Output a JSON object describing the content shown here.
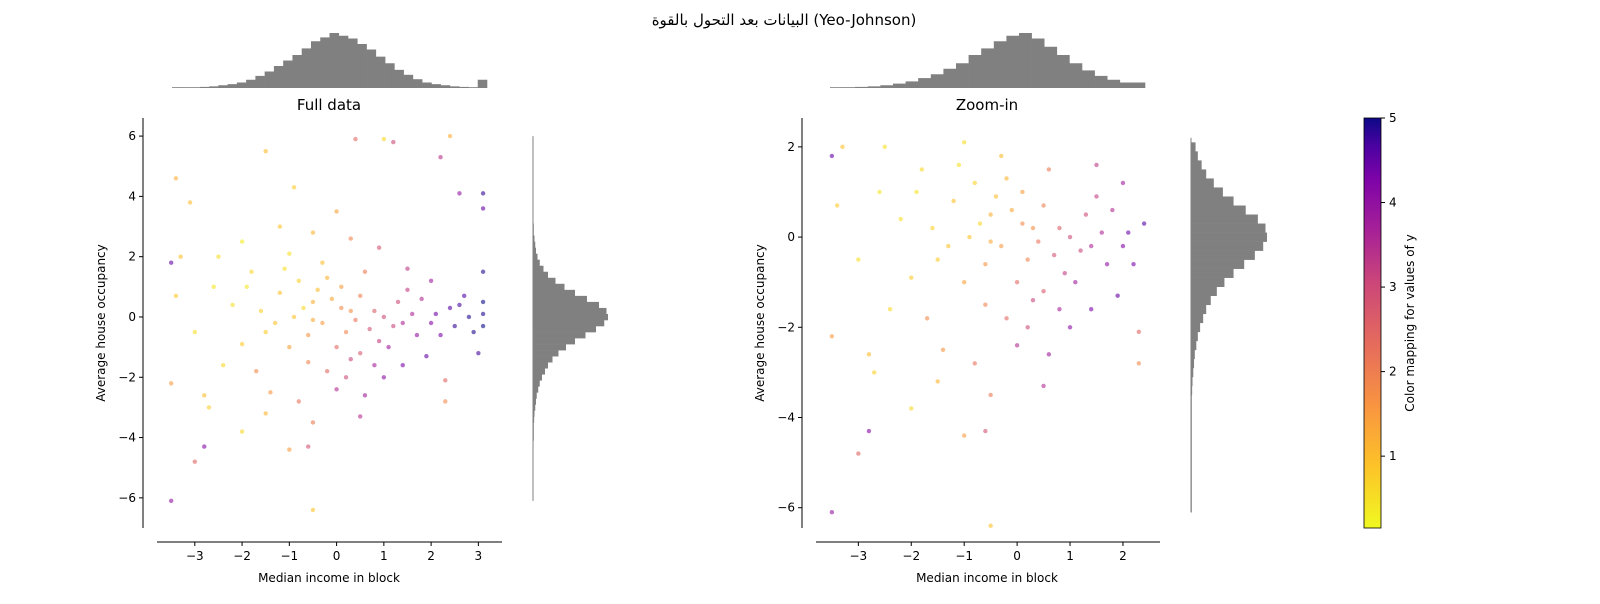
{
  "figure": {
    "suptitle": "البيانات بعد التحول بالقوة (Yeo-Johnson)"
  },
  "colorbar": {
    "label": "Color mapping for values of y",
    "colormap": "plasma_r",
    "range": [
      0.15,
      5
    ],
    "ticks": [
      "1",
      "2",
      "3",
      "4",
      "5"
    ],
    "tick_values": [
      1,
      2,
      3,
      4,
      5
    ]
  },
  "chart_data": [
    {
      "type": "scatter",
      "title": "Full data",
      "xlabel": "Median income in block",
      "ylabel": "Average house occupancy",
      "xlim": [
        -3.8,
        3.5
      ],
      "ylim": [
        -7.0,
        6.6
      ],
      "xticks": [
        -3,
        -2,
        -1,
        0,
        1,
        2,
        3
      ],
      "xtick_labels": [
        "−3",
        "−2",
        "−1",
        "0",
        "1",
        "2",
        "3"
      ],
      "yticks": [
        -6,
        -4,
        -2,
        0,
        2,
        4,
        6
      ],
      "ytick_labels": [
        "−6",
        "−4",
        "−2",
        "0",
        "2",
        "4",
        "6"
      ],
      "hist_x": {
        "start": -3.6,
        "width": 0.2,
        "values": [
          0.003,
          0.006,
          0.01,
          0.02,
          0.03,
          0.05,
          0.07,
          0.1,
          0.15,
          0.22,
          0.3,
          0.4,
          0.5,
          0.6,
          0.72,
          0.85,
          0.92,
          1.0,
          0.95,
          0.9,
          0.8,
          0.7,
          0.57,
          0.45,
          0.33,
          0.24,
          0.16,
          0.1,
          0.07,
          0.05,
          0.03,
          0.02,
          0.01,
          0.15
        ]
      },
      "hist_y": {
        "start": -4.1,
        "width": 0.2,
        "values": [
          0.005,
          0.007,
          0.01,
          0.015,
          0.02,
          0.03,
          0.04,
          0.05,
          0.07,
          0.09,
          0.12,
          0.16,
          0.2,
          0.26,
          0.34,
          0.44,
          0.56,
          0.7,
          0.84,
          0.95,
          1.0,
          0.98,
          0.88,
          0.72,
          0.56,
          0.42,
          0.3,
          0.2,
          0.14,
          0.09,
          0.06,
          0.04,
          0.03,
          0.02,
          0.01,
          0.01
        ]
      },
      "hist_color": "#808080"
    },
    {
      "type": "scatter",
      "title": "Zoom-in",
      "xlabel": "Median income in block",
      "ylabel": "Average house occupancy",
      "xlim": [
        -3.8,
        2.7
      ],
      "ylim": [
        -6.45,
        2.64
      ],
      "data_limits": {
        "x_max": 2.45,
        "y_max": 2.25
      },
      "xticks": [
        -3,
        -2,
        -1,
        0,
        1,
        2
      ],
      "xtick_labels": [
        "−3",
        "−2",
        "−1",
        "0",
        "1",
        "2"
      ],
      "yticks": [
        -6,
        -4,
        -2,
        0,
        2
      ],
      "ytick_labels": [
        "−6",
        "−4",
        "−2",
        "0",
        "2"
      ],
      "hist_x": {
        "start": -3.6,
        "width": 0.24,
        "values": [
          0.01,
          0.015,
          0.02,
          0.03,
          0.05,
          0.08,
          0.12,
          0.18,
          0.25,
          0.35,
          0.45,
          0.6,
          0.72,
          0.85,
          0.95,
          1.0,
          0.9,
          0.75,
          0.6,
          0.45,
          0.32,
          0.22,
          0.15,
          0.1,
          0.1
        ]
      },
      "hist_y": {
        "start": -6.1,
        "width": 0.2,
        "values": [
          0.004,
          0.004,
          0.004,
          0.004,
          0.004,
          0.004,
          0.004,
          0.004,
          0.004,
          0.004,
          0.005,
          0.007,
          0.01,
          0.015,
          0.02,
          0.03,
          0.04,
          0.05,
          0.07,
          0.09,
          0.12,
          0.16,
          0.2,
          0.26,
          0.34,
          0.44,
          0.56,
          0.7,
          0.84,
          0.95,
          1.0,
          0.98,
          0.88,
          0.72,
          0.56,
          0.42,
          0.3,
          0.2,
          0.14,
          0.09,
          0.06
        ]
      },
      "hist_color": "#808080"
    }
  ],
  "points": [
    [
      -1.2,
      0.8,
      0.9
    ],
    [
      -0.8,
      1.2,
      0.7
    ],
    [
      -0.5,
      0.5,
      1.2
    ],
    [
      -0.3,
      -0.2,
      1.5
    ],
    [
      0.1,
      0.3,
      1.8
    ],
    [
      0.4,
      -0.1,
      2.2
    ],
    [
      0.8,
      0.2,
      2.6
    ],
    [
      1.2,
      -0.3,
      3.1
    ],
    [
      1.6,
      0.1,
      3.6
    ],
    [
      2.0,
      -0.2,
      4.2
    ],
    [
      2.4,
      0.3,
      4.6
    ],
    [
      2.8,
      0.0,
      4.9
    ],
    [
      3.1,
      0.5,
      5.0
    ],
    [
      3.1,
      -0.3,
      5.0
    ],
    [
      3.1,
      0.1,
      4.9
    ],
    [
      -1.8,
      1.5,
      0.6
    ],
    [
      -2.2,
      0.4,
      0.5
    ],
    [
      -1.5,
      -0.5,
      0.8
    ],
    [
      -1.0,
      -1.0,
      1.4
    ],
    [
      -0.6,
      -1.5,
      1.9
    ],
    [
      -0.2,
      -1.8,
      2.4
    ],
    [
      0.2,
      -2.0,
      3.0
    ],
    [
      0.5,
      -1.2,
      2.7
    ],
    [
      0.9,
      -0.8,
      3.2
    ],
    [
      1.3,
      0.5,
      3.0
    ],
    [
      1.8,
      0.6,
      3.5
    ],
    [
      2.2,
      -0.6,
      4.3
    ],
    [
      2.6,
      0.4,
      4.7
    ],
    [
      -2.6,
      1.0,
      0.4
    ],
    [
      -3.0,
      -0.5,
      0.5
    ],
    [
      -3.4,
      0.7,
      0.8
    ],
    [
      -3.5,
      -2.2,
      1.5
    ],
    [
      -3.4,
      4.6,
      1.2
    ],
    [
      -3.5,
      -6.1,
      4.0
    ],
    [
      -3.0,
      -4.8,
      2.5
    ],
    [
      -2.8,
      -4.3,
      4.2
    ],
    [
      -2.0,
      -3.8,
      0.6
    ],
    [
      -1.4,
      -2.5,
      1.6
    ],
    [
      -0.8,
      -2.8,
      2.2
    ],
    [
      0.0,
      -2.4,
      3.5
    ],
    [
      0.6,
      -2.6,
      3.8
    ],
    [
      1.0,
      -2.0,
      4.1
    ],
    [
      1.4,
      -1.6,
      4.3
    ],
    [
      1.9,
      -1.3,
      4.5
    ],
    [
      2.3,
      -2.1,
      2.5
    ],
    [
      -1.5,
      5.5,
      1.0
    ],
    [
      -0.9,
      4.3,
      0.8
    ],
    [
      0.4,
      5.9,
      2.4
    ],
    [
      1.0,
      5.9,
      0.6
    ],
    [
      1.2,
      5.8,
      3.0
    ],
    [
      2.4,
      6.0,
      1.2
    ],
    [
      2.6,
      4.1,
      4.0
    ],
    [
      3.1,
      4.1,
      4.8
    ],
    [
      3.1,
      3.6,
      4.5
    ],
    [
      2.2,
      5.3,
      3.4
    ],
    [
      -2.5,
      2.0,
      0.5
    ],
    [
      -2.0,
      2.5,
      0.3
    ],
    [
      -1.2,
      3.0,
      0.9
    ],
    [
      -0.5,
      2.8,
      1.1
    ],
    [
      0.0,
      3.5,
      1.4
    ],
    [
      0.3,
      2.6,
      1.9
    ],
    [
      0.9,
      2.3,
      2.8
    ],
    [
      1.5,
      1.6,
      3.3
    ],
    [
      2.0,
      1.2,
      3.8
    ],
    [
      -1.0,
      2.1,
      0.5
    ],
    [
      -0.3,
      1.8,
      1.0
    ],
    [
      0.6,
      1.5,
      2.1
    ],
    [
      -0.9,
      0.0,
      0.9
    ],
    [
      -0.7,
      0.3,
      0.6
    ],
    [
      -0.4,
      0.9,
      1.0
    ],
    [
      -0.1,
      0.6,
      1.3
    ],
    [
      0.2,
      -0.5,
      1.9
    ],
    [
      0.5,
      0.7,
      2.0
    ],
    [
      0.7,
      -0.4,
      2.8
    ],
    [
      1.0,
      0.0,
      3.0
    ],
    [
      1.1,
      -1.0,
      3.8
    ],
    [
      1.4,
      -0.2,
      3.6
    ],
    [
      1.7,
      -0.6,
      4.0
    ],
    [
      2.1,
      0.1,
      4.4
    ],
    [
      -1.6,
      0.2,
      0.7
    ],
    [
      -1.3,
      -0.2,
      0.9
    ],
    [
      -2.0,
      -0.9,
      0.8
    ],
    [
      -2.4,
      -1.6,
      0.6
    ],
    [
      -2.8,
      -2.6,
      1.0
    ],
    [
      -1.7,
      -1.8,
      1.8
    ],
    [
      -0.6,
      -0.6,
      1.6
    ],
    [
      0.0,
      -1.0,
      2.4
    ],
    [
      0.3,
      -1.4,
      3.1
    ],
    [
      0.8,
      -1.6,
      3.7
    ],
    [
      -1.1,
      1.6,
      0.5
    ],
    [
      -1.9,
      1.0,
      0.4
    ],
    [
      -0.2,
      1.3,
      1.1
    ],
    [
      0.1,
      1.0,
      1.5
    ],
    [
      0.3,
      0.2,
      1.7
    ],
    [
      -0.5,
      -0.1,
      1.3
    ],
    [
      1.5,
      0.9,
      3.2
    ],
    [
      2.5,
      -0.3,
      4.8
    ],
    [
      2.7,
      0.7,
      4.6
    ],
    [
      2.9,
      -0.5,
      4.9
    ],
    [
      -1.5,
      -3.2,
      1.1
    ],
    [
      -0.5,
      -3.5,
      2.1
    ],
    [
      0.5,
      -3.3,
      3.5
    ],
    [
      -3.1,
      3.8,
      1.0
    ],
    [
      -2.7,
      -3.0,
      0.7
    ],
    [
      -0.6,
      -4.3,
      2.8
    ],
    [
      -1.0,
      -4.4,
      1.5
    ],
    [
      -0.5,
      -6.4,
      0.9
    ],
    [
      2.3,
      -2.8,
      1.8
    ],
    [
      3.1,
      1.5,
      4.9
    ],
    [
      3.0,
      -1.2,
      4.7
    ],
    [
      -3.3,
      2.0,
      0.9
    ],
    [
      -3.5,
      1.8,
      4.5
    ]
  ]
}
